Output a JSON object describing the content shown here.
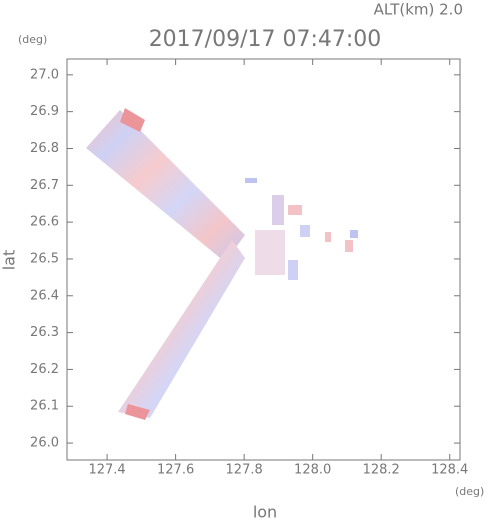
{
  "chart_data": {
    "type": "map",
    "title": "2017/09/17 07:47:00",
    "subtitle": "ALT(km) 2.0",
    "x_label": "lon",
    "y_label": "lat",
    "x_unit": "(deg)",
    "y_unit": "(deg)",
    "xlim": [
      127.283,
      128.43
    ],
    "ylim": [
      25.954,
      27.043
    ],
    "xticks": [
      127.4,
      127.6,
      127.8,
      {
        "value": 128,
        "label": "128.0"
      },
      128.2,
      128.4
    ],
    "yticks": [
      {
        "value": 26,
        "label": "26.0"
      },
      26.1,
      26.2,
      26.3,
      26.4,
      26.5,
      26.6,
      26.7,
      26.8,
      26.9,
      {
        "value": 27,
        "label": "27.0"
      }
    ]
  }
}
